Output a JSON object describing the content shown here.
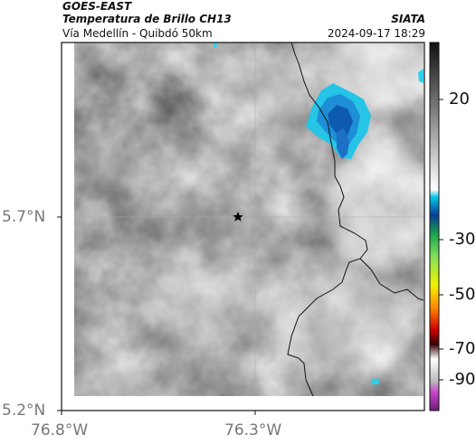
{
  "header": {
    "satellite": "GOES-EAST",
    "product": "Temperatura de Brillo CH13",
    "region": "Vía Medellín - Quibdó 50km",
    "agency": "SIATA",
    "timestamp": "2024-09-17 18:29"
  },
  "axes": {
    "lat_ticks": [
      "5.7°N",
      "5.2°N"
    ],
    "lon_ticks": [
      "76.8°W",
      "76.3°W"
    ]
  },
  "colorbar": {
    "tick_labels": [
      "20",
      "-30",
      "-50",
      "-70",
      "-90"
    ],
    "range": [
      -95,
      55
    ],
    "unit": "°C"
  },
  "marker": {
    "icon": "star-icon"
  },
  "colors": {
    "cold_cloud": "#1f8fd8",
    "cold_cloud_core": "#0b4fa0",
    "border_line": "#111111"
  }
}
